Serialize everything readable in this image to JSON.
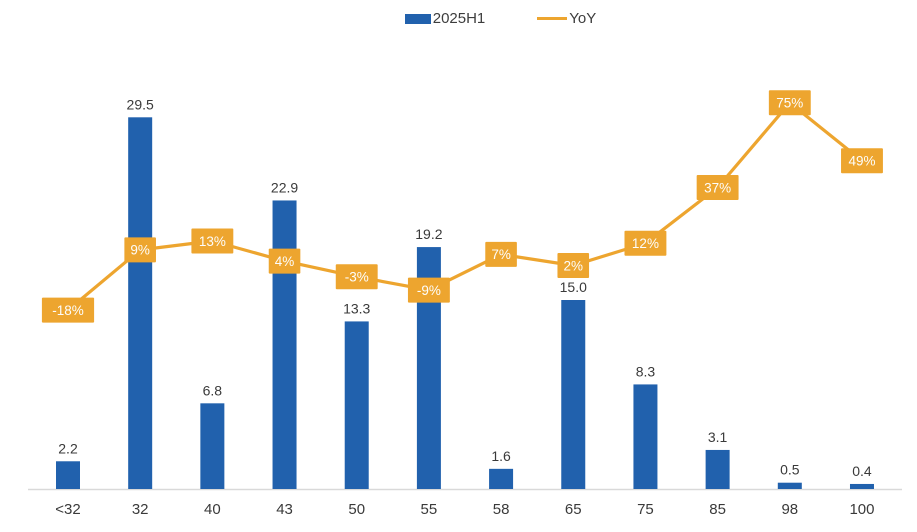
{
  "chart_data": {
    "type": "bar",
    "subtype": "bar+line-combo",
    "title": "",
    "xlabel": "",
    "ylabel": "",
    "categories": [
      "<32",
      "32",
      "40",
      "43",
      "50",
      "55",
      "58",
      "65",
      "75",
      "85",
      "98",
      "100"
    ],
    "series": [
      {
        "name": "2025H1",
        "type": "bar",
        "color": "#2161AD",
        "axis": "left",
        "values": [
          2.2,
          29.5,
          6.8,
          22.9,
          13.3,
          19.2,
          1.6,
          15.0,
          8.3,
          3.1,
          0.5,
          0.4
        ],
        "labels": [
          "2.2",
          "29.5",
          "6.8",
          "22.9",
          "13.3",
          "19.2",
          "1.6",
          "15.0",
          "8.3",
          "3.1",
          "0.5",
          "0.4"
        ]
      },
      {
        "name": "YoY",
        "type": "line",
        "color": "#EDA52F",
        "axis": "right",
        "values_pct": [
          -18,
          9,
          13,
          4,
          -3,
          -9,
          7,
          2,
          12,
          37,
          75,
          49
        ],
        "labels": [
          "-18%",
          "9%",
          "13%",
          "4%",
          "-3%",
          "-9%",
          "7%",
          "2%",
          "12%",
          "37%",
          "75%",
          "49%"
        ]
      }
    ],
    "ylim_left": [
      0,
      30
    ],
    "ylim_right_pct": [
      -30,
      90
    ],
    "grid": false,
    "axes_visible": "bottom-only",
    "legend_position": "top-center",
    "colors": {
      "bar": "#2161AD",
      "line": "#EDA52F",
      "label_box": "#EDA52F",
      "label_box_text": "#FDFDFB",
      "text": "#3A3A3A",
      "axis_line": "#D9D9D9",
      "background": "#FFFFFF"
    }
  }
}
